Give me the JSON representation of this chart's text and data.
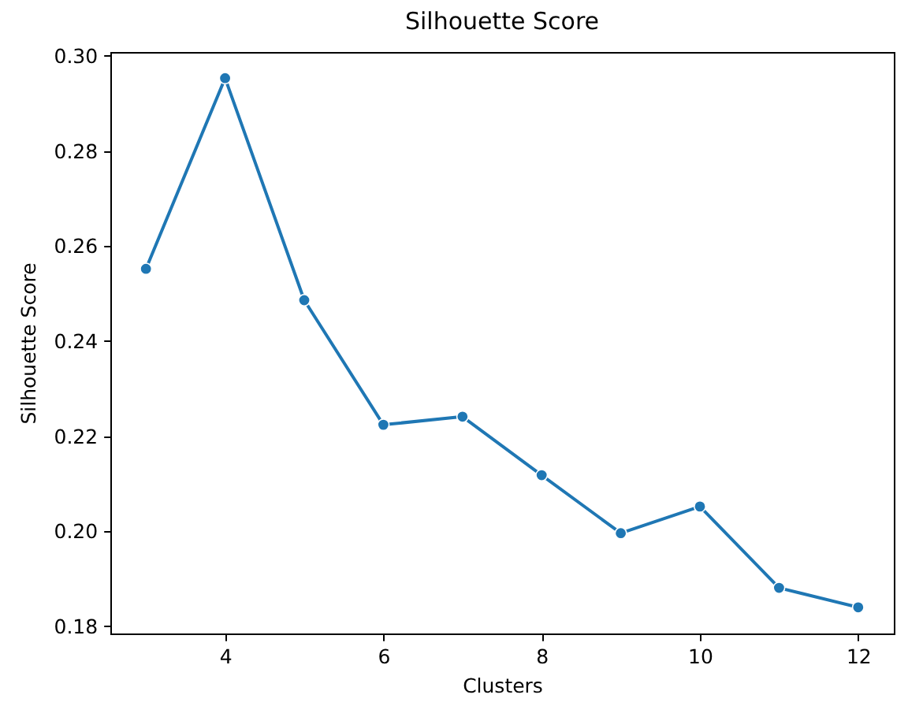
{
  "chart_data": {
    "type": "line",
    "title": "Silhouette Score",
    "xlabel": "Clusters",
    "ylabel": "Silhouette Score",
    "x": [
      3,
      4,
      5,
      6,
      7,
      8,
      9,
      10,
      11,
      12
    ],
    "values": [
      0.2552,
      0.2953,
      0.2486,
      0.2224,
      0.2241,
      0.2118,
      0.1996,
      0.2052,
      0.1881,
      0.184
    ],
    "color": "#1f77b4",
    "marker": "circle",
    "line_style": "solid",
    "grid": false,
    "xlim": [
      2.55,
      12.45
    ],
    "xticks": [
      4,
      6,
      8,
      10,
      12
    ],
    "ylim": [
      0.1785,
      0.3008
    ],
    "yticks": [
      0.18,
      {
        "value": 0.2,
        "label": "0.20"
      },
      0.22,
      0.24,
      0.26,
      0.28,
      {
        "value": 0.3,
        "label": "0.30"
      }
    ]
  }
}
